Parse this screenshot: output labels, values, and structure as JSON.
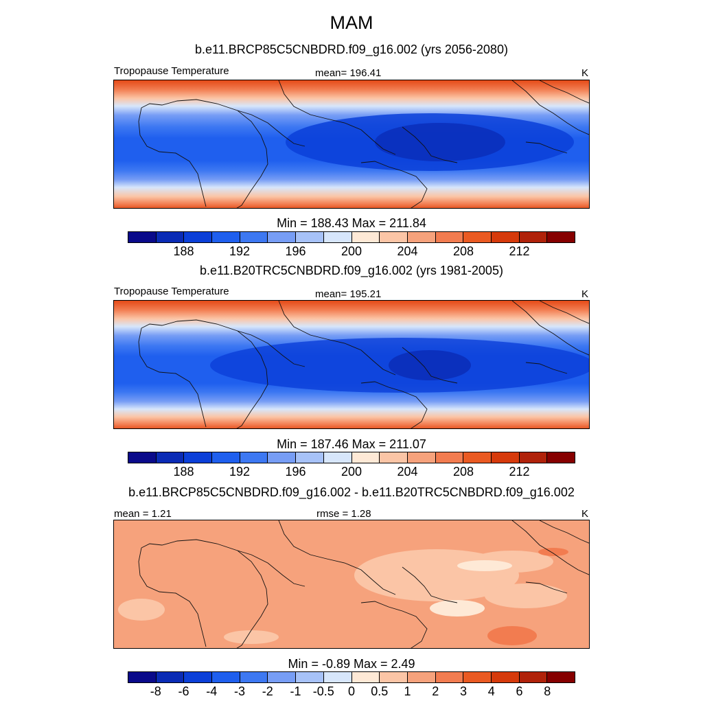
{
  "title": "MAM",
  "units": "K",
  "colorbar_colors": [
    "#0a0a8a",
    "#0a2bb5",
    "#0b3fd8",
    "#1f5fee",
    "#3d78f2",
    "#779df5",
    "#a7c2f8",
    "#d7e6fb",
    "#fee9d6",
    "#fbc5a6",
    "#f6a27c",
    "#f27c50",
    "#ea5a22",
    "#d63a0b",
    "#b0220a",
    "#860000"
  ],
  "panels": [
    {
      "case": "b.e11.BRCP85C5CNBDRD.f09_g16.002 (yrs 2056-2080)",
      "left_label": "Tropopause Temperature",
      "center_label": "mean= 196.41",
      "units": "K",
      "minmax": "Min = 188.43 Max = 211.84",
      "ticks": [
        "188",
        "192",
        "196",
        "200",
        "204",
        "208",
        "212"
      ]
    },
    {
      "case": "b.e11.B20TRC5CNBDRD.f09_g16.002 (yrs 1981-2005)",
      "left_label": "Tropopause Temperature",
      "center_label": "mean= 195.21",
      "units": "K",
      "minmax": "Min = 187.46 Max = 211.07",
      "ticks": [
        "188",
        "192",
        "196",
        "200",
        "204",
        "208",
        "212"
      ]
    },
    {
      "case": "b.e11.BRCP85C5CNBDRD.f09_g16.002 - b.e11.B20TRC5CNBDRD.f09_g16.002",
      "left_label": "mean =   1.21",
      "center_label": "rmse =   1.28",
      "units": "K",
      "minmax": "Min =  -0.89 Max =   2.49",
      "ticks": [
        "-8",
        "-6",
        "-4",
        "-3",
        "-2",
        "-1",
        "-0.5",
        "0",
        "0.5",
        "1",
        "2",
        "3",
        "4",
        "6",
        "8"
      ]
    }
  ]
}
